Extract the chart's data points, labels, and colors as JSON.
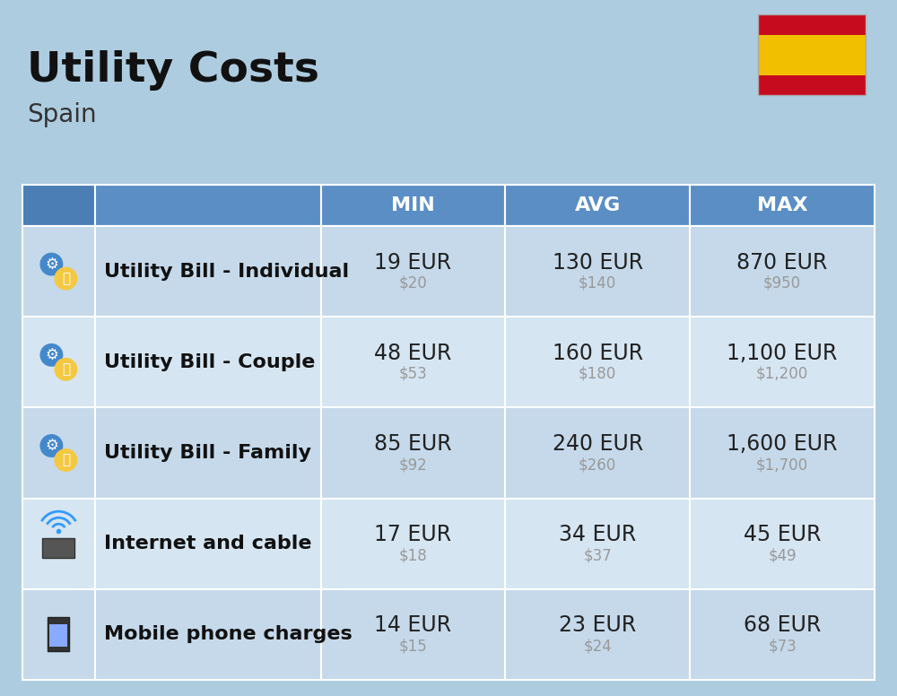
{
  "title": "Utility Costs",
  "subtitle": "Spain",
  "background_color": "#aecce0",
  "header_bg_color_dark": "#4a7eb5",
  "header_bg_color_mid": "#5a8ec5",
  "header_text_color": "#ffffff",
  "row_bg_color_a": "#c5d9ea",
  "row_bg_color_b": "#d5e5f2",
  "col_headers": [
    "MIN",
    "AVG",
    "MAX"
  ],
  "rows": [
    {
      "label": "Utility Bill - Individual",
      "min_eur": "19 EUR",
      "min_usd": "$20",
      "avg_eur": "130 EUR",
      "avg_usd": "$140",
      "max_eur": "870 EUR",
      "max_usd": "$950"
    },
    {
      "label": "Utility Bill - Couple",
      "min_eur": "48 EUR",
      "min_usd": "$53",
      "avg_eur": "160 EUR",
      "avg_usd": "$180",
      "max_eur": "1,100 EUR",
      "max_usd": "$1,200"
    },
    {
      "label": "Utility Bill - Family",
      "min_eur": "85 EUR",
      "min_usd": "$92",
      "avg_eur": "240 EUR",
      "avg_usd": "$260",
      "max_eur": "1,600 EUR",
      "max_usd": "$1,700"
    },
    {
      "label": "Internet and cable",
      "min_eur": "17 EUR",
      "min_usd": "$18",
      "avg_eur": "34 EUR",
      "avg_usd": "$37",
      "max_eur": "45 EUR",
      "max_usd": "$49"
    },
    {
      "label": "Mobile phone charges",
      "min_eur": "14 EUR",
      "min_usd": "$15",
      "avg_eur": "23 EUR",
      "avg_usd": "$24",
      "max_eur": "68 EUR",
      "max_usd": "$73"
    }
  ],
  "eur_fontsize": 17,
  "usd_fontsize": 12,
  "label_fontsize": 16,
  "header_fontsize": 16,
  "title_fontsize": 34,
  "subtitle_fontsize": 20,
  "usd_color": "#999999",
  "cell_text_color": "#222222",
  "label_text_color": "#111111",
  "flag_colors": [
    "#c60b1e",
    "#f1bf00",
    "#c60b1e"
  ],
  "flag_ratios": [
    0.25,
    0.5,
    0.25
  ],
  "title_color": "#111111",
  "subtitle_color": "#333333"
}
